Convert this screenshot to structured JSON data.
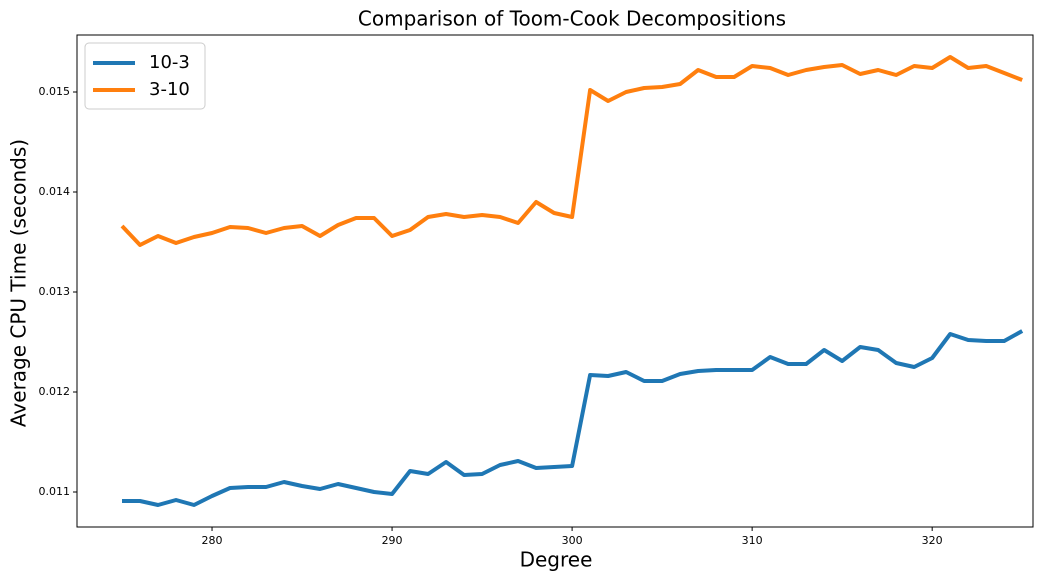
{
  "chart_data": {
    "type": "line",
    "title": "Comparison of Toom-Cook Decompositions",
    "xlabel": "Degree",
    "ylabel": "Average CPU Time (seconds)",
    "x": [
      275,
      276,
      277,
      278,
      279,
      280,
      281,
      282,
      283,
      284,
      285,
      286,
      287,
      288,
      289,
      290,
      291,
      292,
      293,
      294,
      295,
      296,
      297,
      298,
      299,
      300,
      301,
      302,
      303,
      304,
      305,
      306,
      307,
      308,
      309,
      310,
      311,
      312,
      313,
      314,
      315,
      316,
      317,
      318,
      319,
      320,
      321,
      322,
      323,
      324,
      325
    ],
    "series": [
      {
        "name": "10-3",
        "color": "#1f77b4",
        "values": [
          0.01091,
          0.01091,
          0.01087,
          0.01092,
          0.01087,
          0.01096,
          0.01104,
          0.01105,
          0.01105,
          0.0111,
          0.01106,
          0.01103,
          0.01108,
          0.01104,
          0.011,
          0.01098,
          0.01121,
          0.01118,
          0.0113,
          0.01117,
          0.01118,
          0.01127,
          0.01131,
          0.01124,
          0.01125,
          0.01126,
          0.01217,
          0.01216,
          0.0122,
          0.01211,
          0.01211,
          0.01218,
          0.01221,
          0.01222,
          0.01222,
          0.01222,
          0.01235,
          0.01228,
          0.01228,
          0.01242,
          0.01231,
          0.01245,
          0.01242,
          0.01229,
          0.01225,
          0.01234,
          0.01258,
          0.01252,
          0.01251,
          0.01251,
          0.01261
        ]
      },
      {
        "name": "3-10",
        "color": "#ff7f0e",
        "values": [
          0.01366,
          0.01347,
          0.01356,
          0.01349,
          0.01355,
          0.01359,
          0.01365,
          0.01364,
          0.01359,
          0.01364,
          0.01366,
          0.01356,
          0.01367,
          0.01374,
          0.01374,
          0.01356,
          0.01362,
          0.01375,
          0.01378,
          0.01375,
          0.01377,
          0.01375,
          0.01369,
          0.0139,
          0.01379,
          0.01375,
          0.01502,
          0.01491,
          0.015,
          0.01504,
          0.01505,
          0.01508,
          0.01522,
          0.01515,
          0.01515,
          0.01526,
          0.01524,
          0.01517,
          0.01522,
          0.01525,
          0.01527,
          0.01518,
          0.01522,
          0.01517,
          0.01526,
          0.01524,
          0.01535,
          0.01524,
          0.01526,
          0.01519,
          0.01512
        ]
      }
    ],
    "xlim": [
      272.5,
      325.6
    ],
    "ylim": [
      0.01065,
      0.01557
    ],
    "xticks": [
      280,
      290,
      300,
      310,
      320
    ],
    "yticks": [
      0.011,
      0.012,
      0.013,
      0.014,
      0.015
    ],
    "legend": "upper left",
    "grid": false
  }
}
